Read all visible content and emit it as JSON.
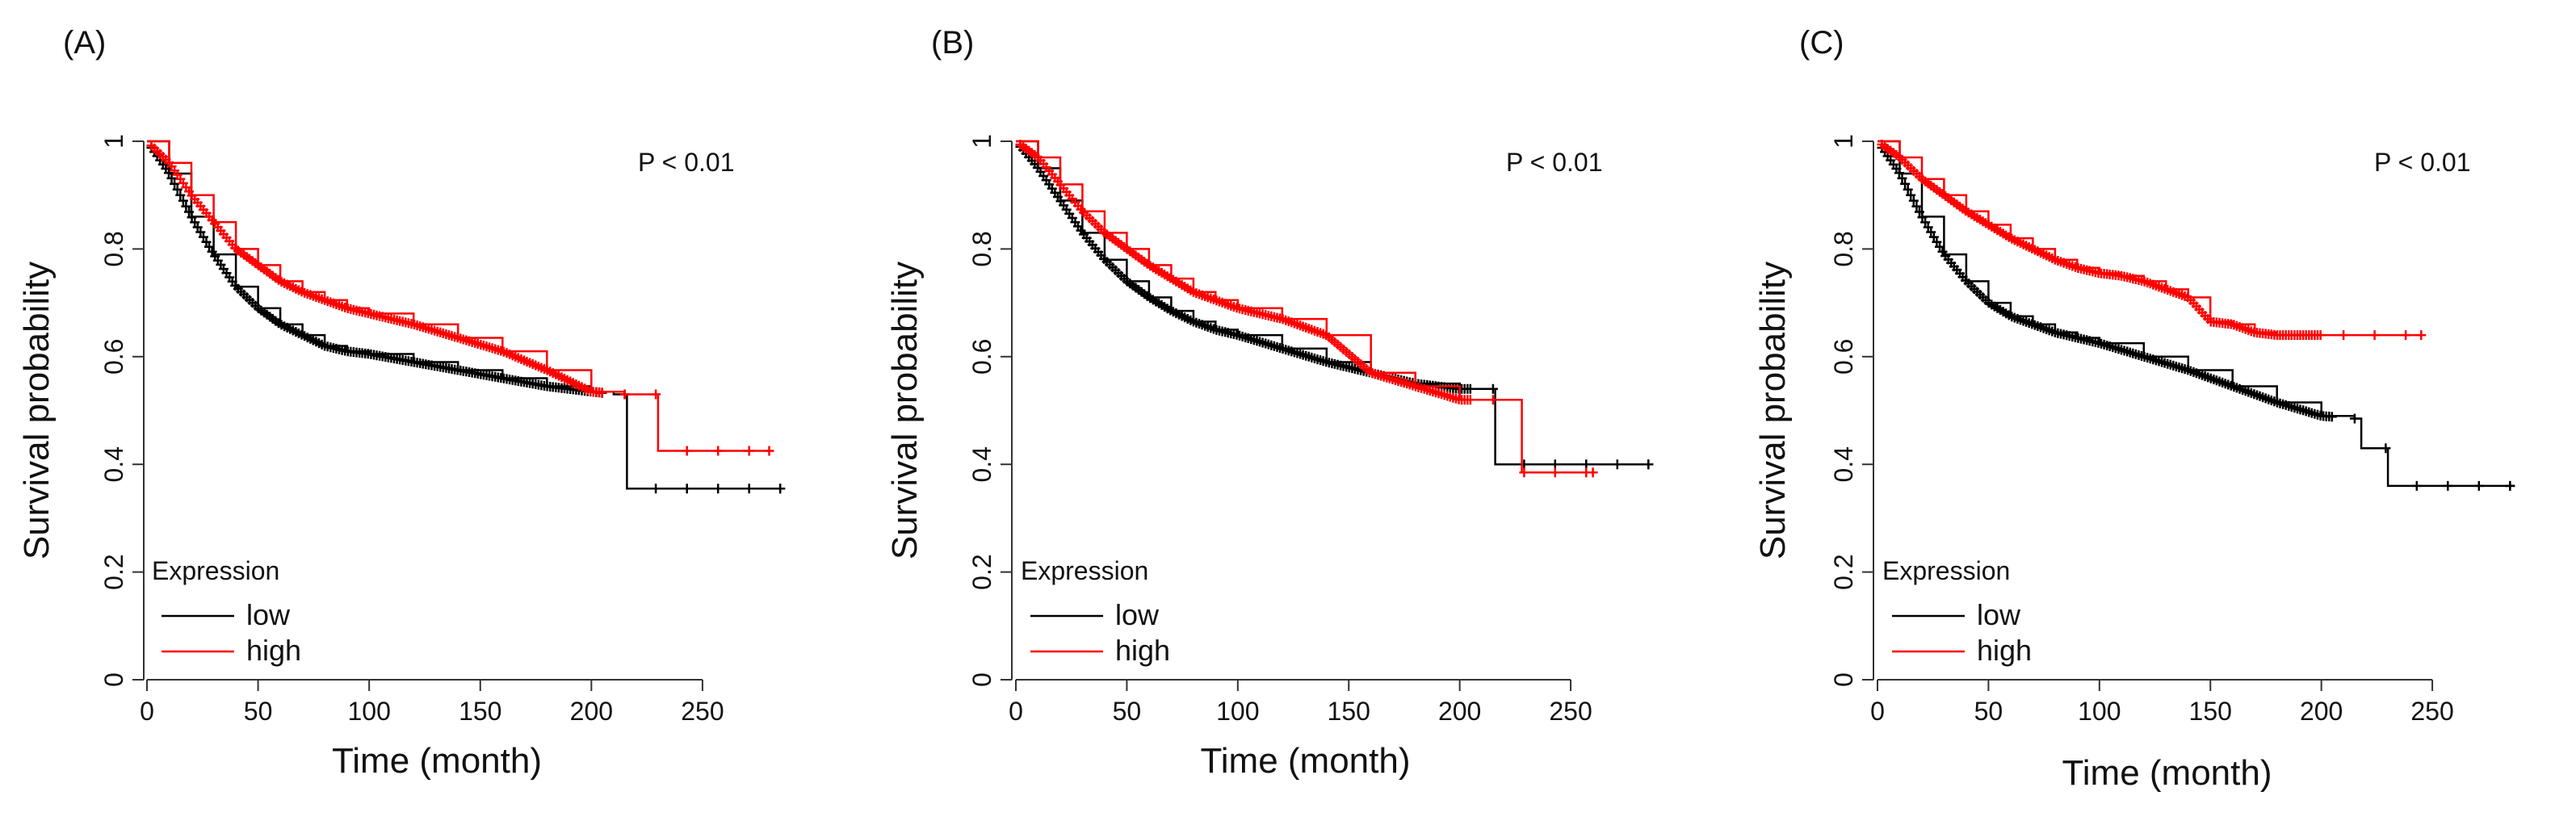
{
  "chart_data": [
    {
      "type": "line",
      "label": "(A)",
      "annotation": "P < 0.01",
      "xlabel": "Time (month)",
      "ylabel": "Survival probability",
      "xlim": [
        0,
        290
      ],
      "ylim": [
        0,
        1.0
      ],
      "xticks": [
        0,
        50,
        100,
        150,
        200,
        250
      ],
      "yticks": [
        0,
        0.2,
        0.4,
        0.6,
        0.8,
        1.0
      ],
      "grid": false,
      "legend": {
        "title": "Expression",
        "placement": "bottom-left"
      },
      "series": [
        {
          "name": "low",
          "color": "#000000",
          "x": [
            0,
            10,
            20,
            30,
            40,
            50,
            60,
            70,
            80,
            90,
            100,
            120,
            140,
            160,
            180,
            200,
            210,
            216,
            216,
            230,
            245,
            285
          ],
          "y": [
            1.0,
            0.94,
            0.86,
            0.79,
            0.73,
            0.69,
            0.66,
            0.64,
            0.62,
            0.61,
            0.605,
            0.59,
            0.575,
            0.56,
            0.545,
            0.535,
            0.53,
            0.53,
            0.355,
            0.355,
            0.355,
            0.355
          ]
        },
        {
          "name": "high",
          "color": "#ff0000",
          "x": [
            0,
            10,
            20,
            30,
            40,
            50,
            60,
            70,
            80,
            90,
            100,
            120,
            140,
            160,
            180,
            200,
            215,
            230,
            230,
            250,
            265,
            280
          ],
          "y": [
            1.0,
            0.96,
            0.9,
            0.85,
            0.8,
            0.77,
            0.74,
            0.72,
            0.705,
            0.69,
            0.68,
            0.66,
            0.635,
            0.61,
            0.575,
            0.535,
            0.53,
            0.53,
            0.425,
            0.425,
            0.425,
            0.425
          ]
        }
      ]
    },
    {
      "type": "line",
      "label": "(B)",
      "annotation": "P < 0.01",
      "xlabel": "Time (month)",
      "ylabel": "Survival probability",
      "xlim": [
        0,
        290
      ],
      "ylim": [
        0,
        1.0
      ],
      "xticks": [
        0,
        50,
        100,
        150,
        200,
        250
      ],
      "yticks": [
        0,
        0.2,
        0.4,
        0.6,
        0.8,
        1.0
      ],
      "grid": false,
      "legend": {
        "title": "Expression",
        "placement": "bottom-left"
      },
      "series": [
        {
          "name": "low",
          "color": "#000000",
          "x": [
            0,
            10,
            20,
            30,
            40,
            50,
            60,
            70,
            80,
            90,
            100,
            120,
            140,
            160,
            180,
            200,
            216,
            216,
            240,
            270,
            285
          ],
          "y": [
            1.0,
            0.95,
            0.89,
            0.83,
            0.78,
            0.74,
            0.71,
            0.685,
            0.665,
            0.65,
            0.64,
            0.615,
            0.59,
            0.57,
            0.55,
            0.54,
            0.54,
            0.4,
            0.4,
            0.4,
            0.4
          ]
        },
        {
          "name": "high",
          "color": "#ff0000",
          "x": [
            0,
            10,
            20,
            30,
            40,
            50,
            60,
            70,
            80,
            90,
            100,
            120,
            140,
            160,
            180,
            200,
            215,
            228,
            228,
            245,
            260
          ],
          "y": [
            1.0,
            0.97,
            0.92,
            0.87,
            0.83,
            0.8,
            0.77,
            0.745,
            0.72,
            0.705,
            0.69,
            0.67,
            0.64,
            0.57,
            0.545,
            0.52,
            0.52,
            0.52,
            0.385,
            0.385,
            0.385
          ]
        }
      ]
    },
    {
      "type": "line",
      "label": "(C)",
      "annotation": "P < 0.01",
      "xlabel": "Time (month)",
      "ylabel": "Survival probability",
      "xlim": [
        0,
        290
      ],
      "ylim": [
        0,
        1.0
      ],
      "xticks": [
        0,
        50,
        100,
        150,
        200,
        250
      ],
      "yticks": [
        0,
        0.2,
        0.4,
        0.6,
        0.8,
        1.0
      ],
      "grid": false,
      "legend": {
        "title": "Expression",
        "placement": "bottom-left"
      },
      "series": [
        {
          "name": "low",
          "color": "#000000",
          "x": [
            0,
            10,
            20,
            30,
            40,
            50,
            60,
            70,
            80,
            90,
            100,
            120,
            140,
            160,
            180,
            200,
            215,
            218,
            225,
            230,
            230,
            260,
            285
          ],
          "y": [
            1.0,
            0.94,
            0.86,
            0.79,
            0.74,
            0.7,
            0.675,
            0.66,
            0.645,
            0.635,
            0.625,
            0.6,
            0.575,
            0.545,
            0.515,
            0.49,
            0.485,
            0.43,
            0.43,
            0.43,
            0.36,
            0.36,
            0.36
          ]
        },
        {
          "name": "high",
          "color": "#ff0000",
          "x": [
            0,
            10,
            20,
            30,
            40,
            50,
            60,
            70,
            80,
            90,
            100,
            110,
            120,
            130,
            140,
            150,
            160,
            170,
            180,
            200,
            220,
            245
          ],
          "y": [
            1.0,
            0.97,
            0.93,
            0.9,
            0.87,
            0.845,
            0.82,
            0.8,
            0.78,
            0.765,
            0.755,
            0.75,
            0.74,
            0.725,
            0.71,
            0.665,
            0.66,
            0.645,
            0.64,
            0.64,
            0.64,
            0.64
          ]
        }
      ]
    }
  ]
}
